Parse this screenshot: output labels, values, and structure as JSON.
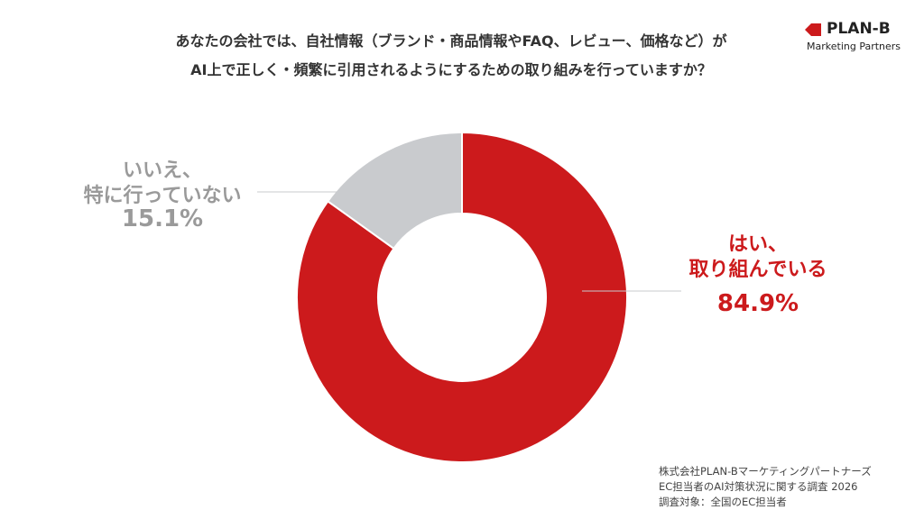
{
  "chart_data": {
    "type": "donut",
    "title": "あなたの会社では、自社情報（ブランド・商品情報やFAQ、レビュー、価格など）が\nAI上で正しく・頻繁に引用されるようにするための取り組みを行っていますか？",
    "categories": [
      "はい、\n取り組んでいる",
      "いいえ、\n特に行っていない"
    ],
    "values": [
      84.9,
      15.1
    ],
    "value_labels": [
      "84.9%",
      "15.1%"
    ],
    "colors": [
      "#cc1a1c",
      "#c9cbce"
    ]
  },
  "logo": {
    "name": "PLAN-B",
    "tagline": "Marketing Partners"
  },
  "source": [
    "株式会社PLAN-Bマーケティングパートナーズ",
    "EC担当者のAI対策状況に関する調査 2026",
    "調査対象：全国のEC担当者"
  ]
}
